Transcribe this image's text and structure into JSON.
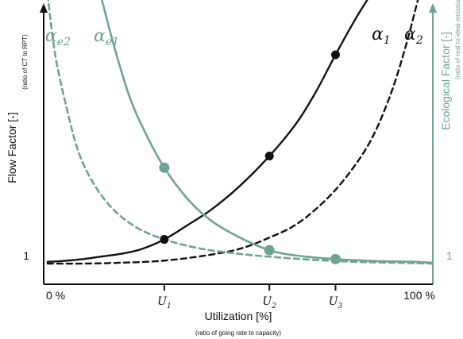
{
  "chart_data": {
    "type": "line",
    "xlabel": "Utilization [%]",
    "xlabel_sub": "(ratio of going rate to capacity)",
    "ylabel_left": "Flow Factor [-]",
    "ylabel_left_sub": "(ratio of CT to RPT)",
    "ylabel_right": "Ecological Factor [-]",
    "ylabel_right_sub": "(ratio of real to ideal emissions)",
    "x_min_label": "0 %",
    "x_max_label": "100 %",
    "y_left_tick": "1",
    "y_right_tick": "1",
    "xticks": [
      {
        "label": "U",
        "sub": "1",
        "x": 0.31
      },
      {
        "label": "U",
        "sub": "2",
        "x": 0.58
      },
      {
        "label": "U",
        "sub": "3",
        "x": 0.75
      }
    ],
    "xlim": [
      0,
      1
    ],
    "ylim": [
      0.75,
      3.85
    ],
    "colors": {
      "flow": "#111111",
      "eco": "#6fa393"
    },
    "series": [
      {
        "name": "α",
        "sub": "1",
        "group": "flow",
        "style": "solid",
        "x": [
          0.01,
          0.05,
          0.1,
          0.15,
          0.2,
          0.25,
          0.31,
          0.37,
          0.43,
          0.5,
          0.58,
          0.65,
          0.7,
          0.75,
          0.8,
          0.84
        ],
        "y": [
          1.0,
          1.01,
          1.03,
          1.06,
          1.09,
          1.14,
          1.25,
          1.41,
          1.58,
          1.83,
          2.18,
          2.55,
          2.9,
          3.31,
          3.7,
          3.98
        ]
      },
      {
        "name": "α",
        "sub": "2",
        "group": "flow",
        "style": "dashed",
        "x": [
          0.01,
          0.1,
          0.2,
          0.3,
          0.4,
          0.5,
          0.58,
          0.65,
          0.72,
          0.78,
          0.84,
          0.89,
          0.93,
          0.965
        ],
        "y": [
          0.98,
          0.98,
          0.99,
          1.01,
          1.06,
          1.14,
          1.27,
          1.42,
          1.67,
          1.96,
          2.35,
          2.85,
          3.4,
          3.98
        ]
      },
      {
        "name": "α",
        "sub": "e1",
        "group": "eco",
        "style": "solid",
        "x": [
          0.145,
          0.18,
          0.22,
          0.26,
          0.31,
          0.37,
          0.43,
          0.5,
          0.58,
          0.65,
          0.75,
          0.85,
          0.95,
          1.0
        ],
        "y": [
          4.0,
          3.42,
          2.85,
          2.45,
          2.05,
          1.7,
          1.46,
          1.28,
          1.13,
          1.07,
          1.03,
          1.01,
          1.0,
          0.99
        ]
      },
      {
        "name": "α",
        "sub": "e2",
        "group": "eco",
        "style": "dashed",
        "x": [
          0.01,
          0.03,
          0.06,
          0.09,
          0.13,
          0.18,
          0.24,
          0.31,
          0.4,
          0.5,
          0.6,
          0.7,
          0.8,
          0.9,
          1.0
        ],
        "y": [
          3.98,
          3.3,
          2.7,
          2.22,
          1.86,
          1.58,
          1.38,
          1.25,
          1.15,
          1.09,
          1.05,
          1.02,
          1.0,
          0.99,
          0.98
        ]
      }
    ],
    "points": [
      {
        "series": "α1",
        "x": 0.31,
        "y": 1.25,
        "color": "#111111"
      },
      {
        "series": "α1",
        "x": 0.58,
        "y": 2.18,
        "color": "#111111"
      },
      {
        "series": "α1",
        "x": 0.75,
        "y": 3.31,
        "color": "#111111"
      },
      {
        "series": "αe1",
        "x": 0.31,
        "y": 2.05,
        "color": "#6fa393"
      },
      {
        "series": "αe1",
        "x": 0.58,
        "y": 1.13,
        "color": "#6fa393"
      },
      {
        "series": "αe1",
        "x": 0.75,
        "y": 1.03,
        "color": "#6fa393"
      }
    ]
  }
}
